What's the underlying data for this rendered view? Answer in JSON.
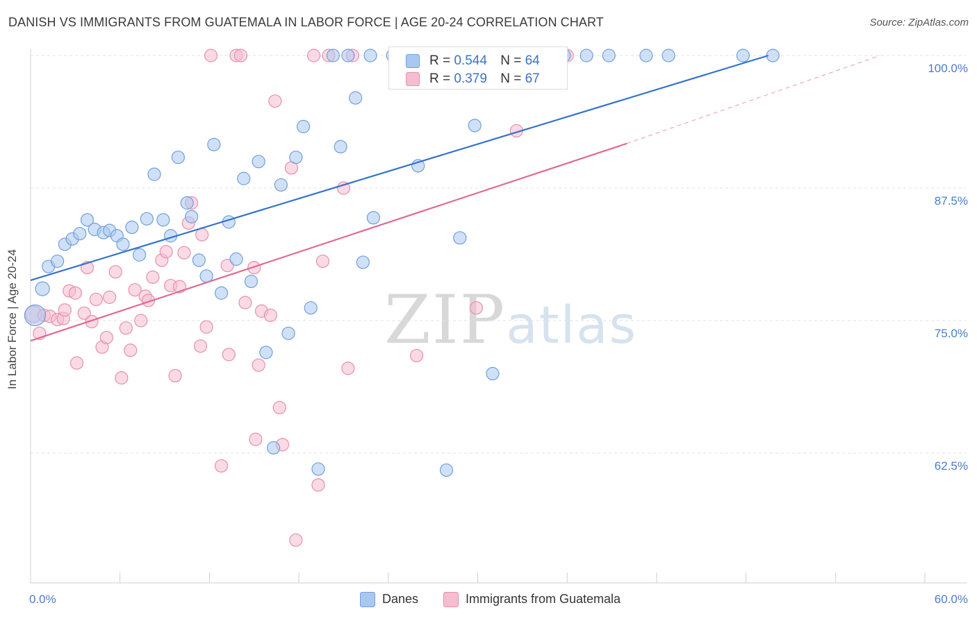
{
  "title": "DANISH VS IMMIGRANTS FROM GUATEMALA IN LABOR FORCE | AGE 20-24 CORRELATION CHART",
  "source": "Source: ZipAtlas.com",
  "watermark": {
    "zip": "ZIP",
    "atlas": "atlas"
  },
  "legend_top": [
    {
      "r_label": "R =",
      "r_value": "0.544",
      "n_label": "N =",
      "n_value": "64"
    },
    {
      "r_label": "R =",
      "r_value": "0.379",
      "n_label": "N =",
      "n_value": "67"
    }
  ],
  "legend_bottom": [
    "Danes",
    "Immigrants from Guatemala"
  ],
  "colors": {
    "danes_fill": "#a9c8f0",
    "danes_stroke": "#6f9fdc",
    "danes_line": "#3373cc",
    "guat_fill": "#f6bcd0",
    "guat_stroke": "#e78fae",
    "guat_line": "#e06a93",
    "tick_label": "#4a7cc7",
    "grid": "#e2e2e2"
  },
  "chart_data": {
    "type": "scatter",
    "title": "DANISH VS IMMIGRANTS FROM GUATEMALA IN LABOR FORCE | AGE 20-24 CORRELATION CHART",
    "xlabel": "",
    "ylabel": "In Labor Force | Age 20-24",
    "xlim": [
      0,
      60
    ],
    "ylim": [
      52,
      101.5
    ],
    "x_tick_labels": [
      "0.0%",
      "60.0%"
    ],
    "y_ticks": [
      62.5,
      75.0,
      87.5,
      100.0
    ],
    "y_tick_labels": [
      "62.5%",
      "75.0%",
      "87.5%",
      "100.0%"
    ],
    "grid": "horizontal dashed",
    "legend_position": "top-center",
    "series": [
      {
        "name": "Danes",
        "r": 0.544,
        "n": 64,
        "trend": {
          "x": [
            0,
            49.5
          ],
          "y": [
            78.8,
            100.0
          ]
        },
        "points": [
          [
            0.3,
            75.5,
            15
          ],
          [
            0.8,
            78.0,
            10
          ],
          [
            1.2,
            80.1,
            9
          ],
          [
            1.8,
            80.6,
            9
          ],
          [
            2.3,
            82.2,
            9
          ],
          [
            2.8,
            82.7,
            9
          ],
          [
            3.3,
            83.2,
            9
          ],
          [
            3.8,
            84.5,
            9
          ],
          [
            4.3,
            83.6,
            9
          ],
          [
            4.9,
            83.3,
            9
          ],
          [
            5.3,
            83.5,
            9
          ],
          [
            5.8,
            83.0,
            9
          ],
          [
            6.2,
            82.2,
            9
          ],
          [
            6.8,
            83.8,
            9
          ],
          [
            7.3,
            81.2,
            9
          ],
          [
            7.8,
            84.6,
            9
          ],
          [
            8.3,
            88.8,
            9
          ],
          [
            8.9,
            84.5,
            9
          ],
          [
            9.4,
            83.0,
            9
          ],
          [
            9.9,
            90.4,
            9
          ],
          [
            10.5,
            86.1,
            9
          ],
          [
            10.8,
            84.8,
            9
          ],
          [
            11.3,
            80.7,
            9
          ],
          [
            11.8,
            79.2,
            9
          ],
          [
            12.3,
            91.6,
            9
          ],
          [
            12.8,
            77.6,
            9
          ],
          [
            13.3,
            84.3,
            9
          ],
          [
            13.8,
            80.8,
            9
          ],
          [
            14.3,
            88.4,
            9
          ],
          [
            14.8,
            78.7,
            9
          ],
          [
            15.3,
            90.0,
            9
          ],
          [
            15.8,
            72.0,
            9
          ],
          [
            16.3,
            63.0,
            9
          ],
          [
            16.8,
            87.8,
            9
          ],
          [
            17.3,
            73.8,
            9
          ],
          [
            17.8,
            90.4,
            9
          ],
          [
            18.3,
            93.3,
            9
          ],
          [
            18.8,
            76.2,
            9
          ],
          [
            19.3,
            61.0,
            9
          ],
          [
            20.3,
            100.0,
            9
          ],
          [
            20.8,
            91.4,
            9
          ],
          [
            21.3,
            100.0,
            9
          ],
          [
            21.8,
            96.0,
            9
          ],
          [
            22.3,
            80.5,
            9
          ],
          [
            22.8,
            100.0,
            9
          ],
          [
            23.0,
            84.7,
            9
          ],
          [
            24.3,
            100.0,
            9
          ],
          [
            25.8,
            100.0,
            9
          ],
          [
            26.0,
            89.6,
            9
          ],
          [
            27.3,
            100.0,
            9
          ],
          [
            27.9,
            60.9,
            9
          ],
          [
            28.3,
            100.0,
            9
          ],
          [
            28.8,
            82.8,
            9
          ],
          [
            29.3,
            100.0,
            9
          ],
          [
            29.8,
            93.4,
            9
          ],
          [
            31.0,
            70.0,
            9
          ],
          [
            33.3,
            100.0,
            9
          ],
          [
            35.8,
            100.0,
            9
          ],
          [
            37.3,
            100.0,
            9
          ],
          [
            38.8,
            100.0,
            9
          ],
          [
            41.3,
            100.0,
            9
          ],
          [
            42.8,
            100.0,
            9
          ],
          [
            47.8,
            100.0,
            9
          ],
          [
            49.8,
            100.0,
            9
          ]
        ]
      },
      {
        "name": "Immigrants from Guatemala",
        "r": 0.379,
        "n": 67,
        "trend": {
          "x": [
            0,
            40.0
          ],
          "y": [
            73.1,
            91.7
          ]
        },
        "trend_extension": {
          "x": [
            40.0,
            57.0
          ],
          "y": [
            91.7,
            100.0
          ]
        },
        "points": [
          [
            0.2,
            75.6,
            12
          ],
          [
            0.6,
            73.8,
            9
          ],
          [
            0.9,
            75.5,
            9
          ],
          [
            1.3,
            75.4,
            9
          ],
          [
            1.8,
            75.1,
            9
          ],
          [
            2.2,
            75.2,
            9
          ],
          [
            2.3,
            76.0,
            9
          ],
          [
            2.6,
            77.8,
            9
          ],
          [
            3.0,
            77.6,
            9
          ],
          [
            3.1,
            71.0,
            9
          ],
          [
            3.6,
            75.7,
            9
          ],
          [
            3.8,
            80.0,
            9
          ],
          [
            4.1,
            74.9,
            9
          ],
          [
            4.4,
            77.0,
            9
          ],
          [
            4.8,
            72.5,
            9
          ],
          [
            5.1,
            73.4,
            9
          ],
          [
            5.3,
            77.2,
            9
          ],
          [
            5.7,
            79.6,
            9
          ],
          [
            6.1,
            69.6,
            9
          ],
          [
            6.4,
            74.3,
            9
          ],
          [
            6.7,
            72.2,
            9
          ],
          [
            7.0,
            77.9,
            9
          ],
          [
            7.4,
            75.0,
            9
          ],
          [
            7.7,
            77.3,
            9
          ],
          [
            7.9,
            76.9,
            9
          ],
          [
            8.2,
            79.1,
            9
          ],
          [
            8.8,
            80.7,
            9
          ],
          [
            9.1,
            81.5,
            9
          ],
          [
            9.4,
            78.3,
            9
          ],
          [
            9.7,
            69.8,
            9
          ],
          [
            10.0,
            78.2,
            9
          ],
          [
            10.3,
            81.4,
            9
          ],
          [
            10.6,
            84.2,
            9
          ],
          [
            10.8,
            86.1,
            9
          ],
          [
            11.4,
            72.6,
            9
          ],
          [
            11.5,
            83.1,
            9
          ],
          [
            11.8,
            74.4,
            9
          ],
          [
            12.1,
            100.0,
            9
          ],
          [
            12.8,
            61.3,
            9
          ],
          [
            13.2,
            80.2,
            9
          ],
          [
            13.3,
            71.8,
            9
          ],
          [
            13.8,
            100.0,
            9
          ],
          [
            14.1,
            100.0,
            9
          ],
          [
            14.4,
            76.7,
            9
          ],
          [
            15.0,
            80.0,
            9
          ],
          [
            15.1,
            63.8,
            9
          ],
          [
            15.3,
            70.8,
            9
          ],
          [
            15.5,
            75.9,
            9
          ],
          [
            16.1,
            75.5,
            9
          ],
          [
            16.4,
            95.7,
            9
          ],
          [
            16.7,
            66.8,
            9
          ],
          [
            16.9,
            63.3,
            9
          ],
          [
            17.5,
            89.4,
            9
          ],
          [
            17.8,
            54.3,
            9
          ],
          [
            19.0,
            100.0,
            9
          ],
          [
            19.3,
            59.5,
            9
          ],
          [
            19.6,
            80.6,
            9
          ],
          [
            20.0,
            100.0,
            9
          ],
          [
            21.0,
            87.5,
            9
          ],
          [
            21.3,
            70.5,
            9
          ],
          [
            21.6,
            100.0,
            9
          ],
          [
            25.0,
            100.0,
            9
          ],
          [
            25.9,
            71.7,
            9
          ],
          [
            29.9,
            76.2,
            9
          ],
          [
            32.0,
            100.0,
            9
          ],
          [
            32.6,
            92.9,
            9
          ],
          [
            36.0,
            100.0,
            9
          ]
        ]
      }
    ]
  }
}
